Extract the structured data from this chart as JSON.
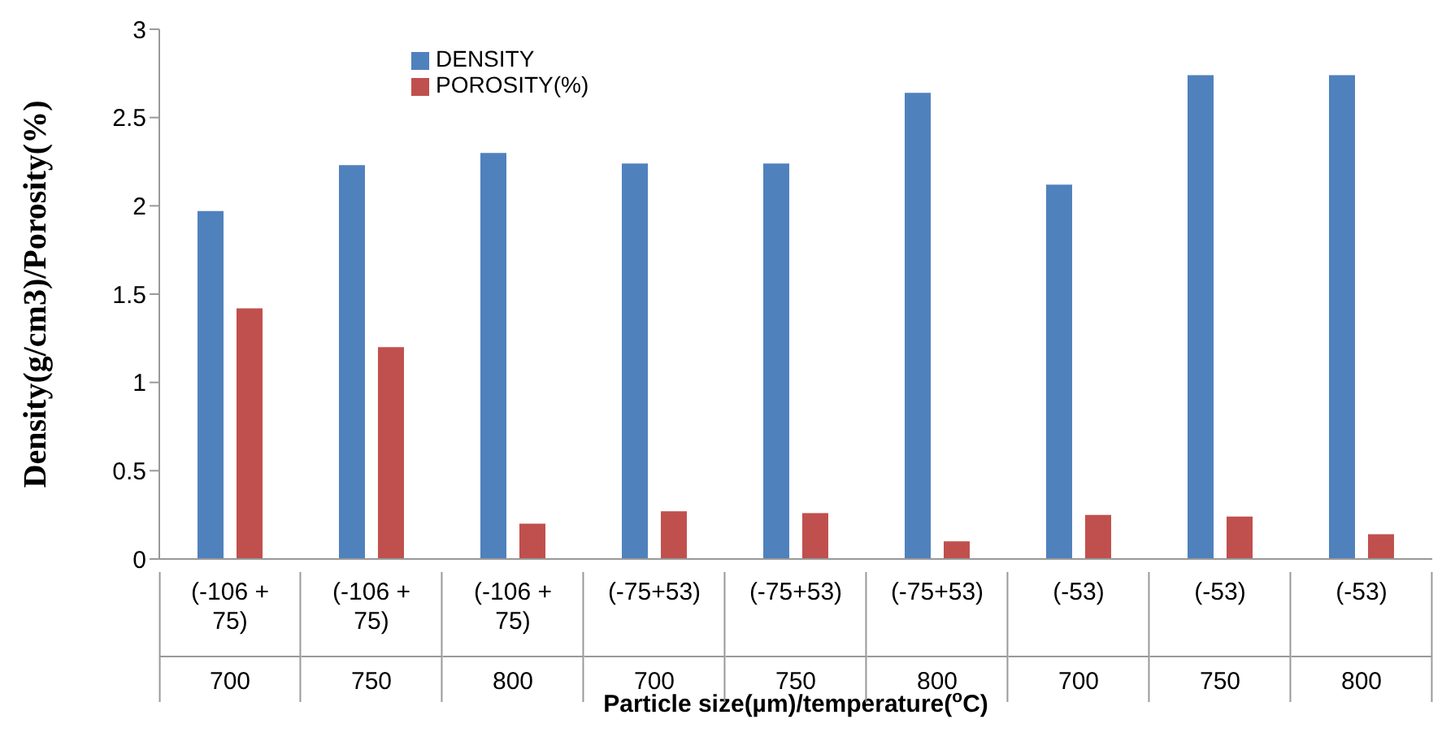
{
  "chart_data": {
    "type": "bar",
    "xlabel": "Particle size(µm)/temperature($^{o}$C)",
    "ylabel": "Density(g/cm3)/Porosity(%)",
    "categories": [
      "(-106 + 75)\n700",
      "(-106 + 75)\n750",
      "(-106 + 75)\n800",
      "(-75+53)\n700",
      "(-75+53)\n750",
      "(-75+53)\n800",
      "(-53)\n700",
      "(-53)\n750",
      "(-53)\n800"
    ],
    "series": [
      {
        "name": "DENSITY",
        "color": "#4f81bd",
        "values": [
          1.97,
          2.23,
          2.3,
          2.24,
          2.24,
          2.64,
          2.12,
          2.74,
          2.74
        ]
      },
      {
        "name": "POROSITY(%)",
        "color": "#c0504d",
        "values": [
          1.42,
          1.2,
          0.2,
          0.27,
          0.26,
          0.1,
          0.25,
          0.24,
          0.14
        ]
      }
    ],
    "ylim": [
      0,
      3
    ],
    "yticks": [
      0,
      0.5,
      1,
      1.5,
      2,
      2.5,
      3
    ],
    "grid": false,
    "legend": "top"
  }
}
